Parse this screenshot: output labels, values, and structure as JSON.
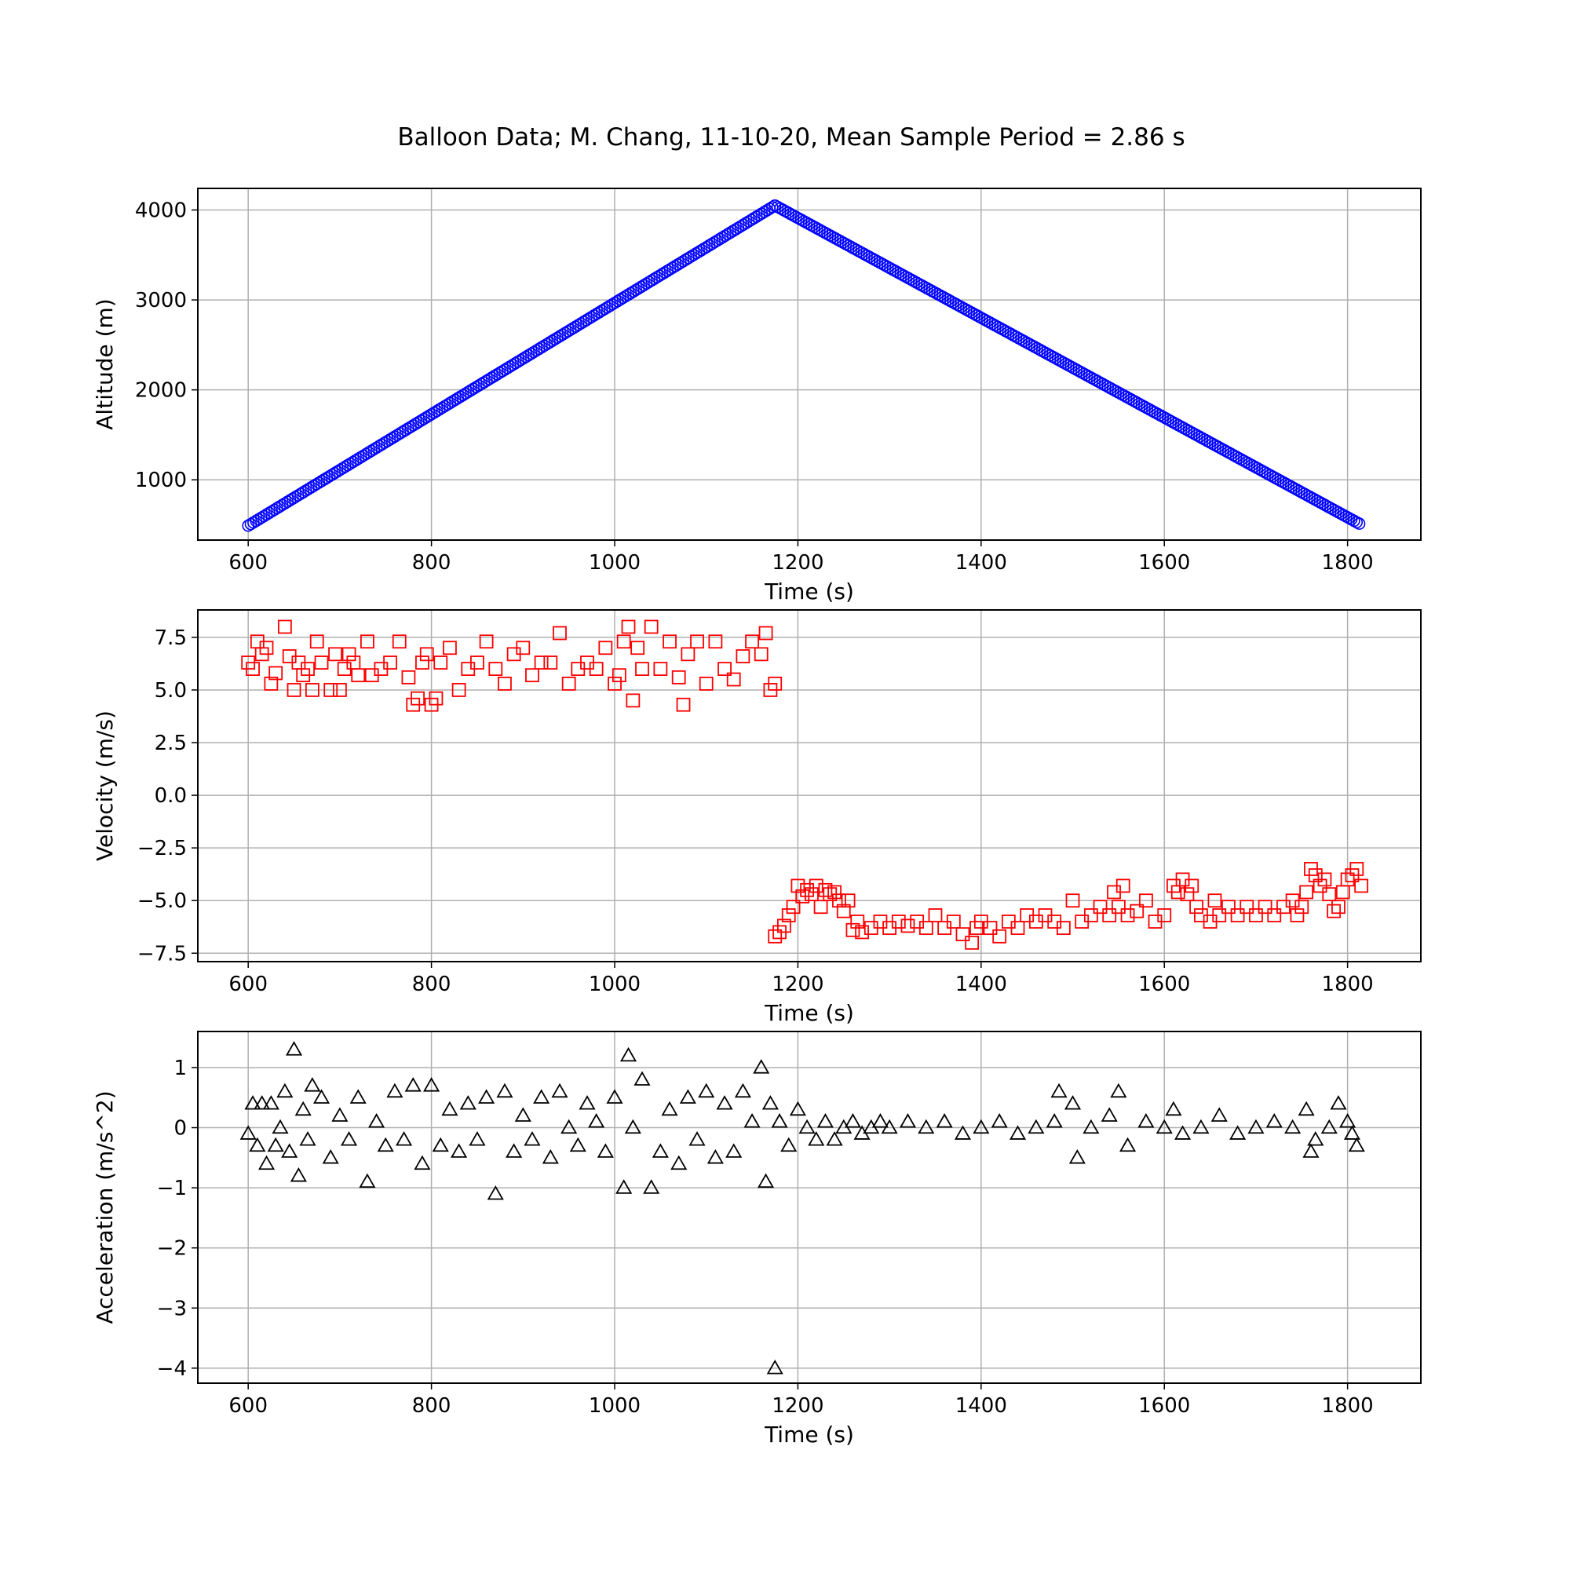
{
  "figure": {
    "title": "Balloon Data; M. Chang, 11-10-20, Mean Sample Period = 2.86 s"
  },
  "chart_data": [
    {
      "type": "scatter",
      "title": "",
      "xlabel": "Time (s)",
      "ylabel": "Altitude (m)",
      "xlim": [
        545,
        1880
      ],
      "ylim": [
        330,
        4240
      ],
      "xticks": [
        600,
        800,
        1000,
        1200,
        1400,
        1600,
        1800
      ],
      "yticks": [
        1000,
        2000,
        3000,
        4000
      ],
      "grid": true,
      "marker": "circle",
      "color": "#0000ff",
      "series": [
        {
          "sample_period": 2.86,
          "ascent": {
            "x_start": 600,
            "x_end": 1175,
            "y_start": 490,
            "y_end": 4050
          },
          "descent": {
            "x_start": 1175,
            "x_end": 1815,
            "y_start": 4050,
            "y_end": 500
          }
        }
      ]
    },
    {
      "type": "scatter",
      "title": "",
      "xlabel": "Time (s)",
      "ylabel": "Velocity (m/s)",
      "xlim": [
        545,
        1880
      ],
      "ylim": [
        -7.9,
        8.8
      ],
      "xticks": [
        600,
        800,
        1000,
        1200,
        1400,
        1600,
        1800
      ],
      "yticks": [
        -7.5,
        -5.0,
        -2.5,
        0.0,
        2.5,
        5.0,
        7.5
      ],
      "ytick_labels": [
        "−7.5",
        "−5.0",
        "−2.5",
        "0.0",
        "2.5",
        "5.0",
        "7.5"
      ],
      "grid": true,
      "marker": "square",
      "color": "#ff0000",
      "series": [
        {
          "x": [
            600,
            605,
            610,
            615,
            620,
            625,
            630,
            640,
            645,
            650,
            655,
            660,
            665,
            670,
            675,
            680,
            690,
            695,
            700,
            705,
            710,
            715,
            720,
            730,
            735,
            745,
            755,
            765,
            775,
            780,
            785,
            790,
            795,
            800,
            805,
            810,
            820,
            830,
            840,
            850,
            860,
            870,
            880,
            890,
            900,
            910,
            920,
            930,
            940,
            950,
            960,
            970,
            980,
            990,
            1000,
            1005,
            1010,
            1015,
            1020,
            1025,
            1030,
            1040,
            1050,
            1060,
            1070,
            1075,
            1080,
            1090,
            1100,
            1110,
            1120,
            1130,
            1140,
            1150,
            1160,
            1165,
            1170,
            1175
          ],
          "y": [
            6.3,
            6.0,
            7.3,
            6.7,
            7.0,
            5.3,
            5.8,
            8.0,
            6.6,
            5.0,
            6.3,
            5.7,
            6.0,
            5.0,
            7.3,
            6.3,
            5.0,
            6.7,
            5.0,
            6.0,
            6.7,
            6.3,
            5.7,
            7.3,
            5.7,
            6.0,
            6.3,
            7.3,
            5.6,
            4.3,
            4.6,
            6.3,
            6.7,
            4.3,
            4.6,
            6.3,
            7.0,
            5.0,
            6.0,
            6.3,
            7.3,
            6.0,
            5.3,
            6.7,
            7.0,
            5.7,
            6.3,
            6.3,
            7.7,
            5.3,
            6.0,
            6.3,
            6.0,
            7.0,
            5.3,
            5.7,
            7.3,
            8.0,
            4.5,
            7.0,
            6.0,
            8.0,
            6.0,
            7.3,
            5.6,
            4.3,
            6.7,
            7.3,
            5.3,
            7.3,
            6.0,
            5.5,
            6.6,
            7.3,
            6.7,
            7.7,
            5.0,
            5.3
          ]
        },
        {
          "x": [
            1175,
            1180,
            1185,
            1190,
            1195,
            1200,
            1205,
            1210,
            1215,
            1220,
            1225,
            1230,
            1235,
            1240,
            1245,
            1250,
            1255,
            1260,
            1265,
            1270,
            1280,
            1290,
            1300,
            1310,
            1320,
            1330,
            1340,
            1350,
            1360,
            1370,
            1380,
            1390,
            1395,
            1400,
            1410,
            1420,
            1430,
            1440,
            1450,
            1460,
            1470,
            1480,
            1490,
            1500,
            1510,
            1520,
            1530,
            1540,
            1545,
            1550,
            1555,
            1560,
            1570,
            1580,
            1590,
            1600,
            1610,
            1615,
            1620,
            1625,
            1630,
            1635,
            1640,
            1650,
            1655,
            1660,
            1670,
            1680,
            1690,
            1700,
            1710,
            1720,
            1730,
            1740,
            1745,
            1750,
            1755,
            1760,
            1765,
            1770,
            1775,
            1780,
            1785,
            1790,
            1795,
            1800,
            1805,
            1810,
            1815
          ],
          "y": [
            -6.7,
            -6.5,
            -6.2,
            -5.7,
            -5.3,
            -4.3,
            -4.8,
            -4.5,
            -4.7,
            -4.3,
            -5.3,
            -4.5,
            -4.7,
            -4.6,
            -5.0,
            -5.5,
            -5.0,
            -6.4,
            -6.0,
            -6.5,
            -6.3,
            -6.0,
            -6.3,
            -6.0,
            -6.2,
            -6.0,
            -6.3,
            -5.7,
            -6.3,
            -6.0,
            -6.6,
            -7.0,
            -6.3,
            -6.0,
            -6.3,
            -6.7,
            -6.0,
            -6.3,
            -5.7,
            -6.0,
            -5.7,
            -6.0,
            -6.3,
            -5.0,
            -6.0,
            -5.7,
            -5.3,
            -5.7,
            -4.6,
            -5.3,
            -4.3,
            -5.7,
            -5.5,
            -5.0,
            -6.0,
            -5.7,
            -4.3,
            -4.6,
            -4.0,
            -4.7,
            -4.3,
            -5.3,
            -5.7,
            -6.0,
            -5.0,
            -5.7,
            -5.3,
            -5.7,
            -5.3,
            -5.7,
            -5.3,
            -5.7,
            -5.3,
            -5.0,
            -5.7,
            -5.3,
            -4.6,
            -3.5,
            -3.8,
            -4.3,
            -4.0,
            -4.7,
            -5.5,
            -5.3,
            -4.6,
            -4.0,
            -3.8,
            -3.5,
            -4.3
          ]
        }
      ]
    },
    {
      "type": "scatter",
      "title": "",
      "xlabel": "Time (s)",
      "ylabel": "Acceleration (m/s^2)",
      "xlim": [
        545,
        1880
      ],
      "ylim": [
        -4.25,
        1.6
      ],
      "xticks": [
        600,
        800,
        1000,
        1200,
        1400,
        1600,
        1800
      ],
      "yticks": [
        -4,
        -3,
        -2,
        -1,
        0,
        1
      ],
      "ytick_labels": [
        "−4",
        "−3",
        "−2",
        "−1",
        "0",
        "1"
      ],
      "grid": true,
      "marker": "triangle",
      "color": "#000000",
      "series": [
        {
          "x": [
            600,
            605,
            610,
            615,
            620,
            625,
            630,
            635,
            640,
            645,
            650,
            655,
            660,
            665,
            670,
            680,
            690,
            700,
            710,
            720,
            730,
            740,
            750,
            760,
            770,
            780,
            790,
            800,
            810,
            820,
            830,
            840,
            850,
            860,
            870,
            880,
            890,
            900,
            910,
            920,
            930,
            940,
            950,
            960,
            970,
            980,
            990,
            1000,
            1010,
            1015,
            1020,
            1030,
            1040,
            1050,
            1060,
            1070,
            1080,
            1090,
            1100,
            1110,
            1120,
            1130,
            1140,
            1150,
            1160,
            1165,
            1170,
            1175,
            1180,
            1190,
            1200,
            1210,
            1220,
            1230,
            1240,
            1250,
            1260,
            1270,
            1280,
            1290,
            1300,
            1320,
            1340,
            1360,
            1380,
            1400,
            1420,
            1440,
            1460,
            1480,
            1485,
            1500,
            1505,
            1520,
            1540,
            1550,
            1560,
            1580,
            1600,
            1610,
            1620,
            1640,
            1660,
            1680,
            1700,
            1720,
            1740,
            1755,
            1760,
            1765,
            1780,
            1790,
            1800,
            1805,
            1810
          ],
          "y": [
            -0.1,
            0.4,
            -0.3,
            0.4,
            -0.6,
            0.4,
            -0.3,
            0.0,
            0.6,
            -0.4,
            1.3,
            -0.8,
            0.3,
            -0.2,
            0.7,
            0.5,
            -0.5,
            0.2,
            -0.2,
            0.5,
            -0.9,
            0.1,
            -0.3,
            0.6,
            -0.2,
            0.7,
            -0.6,
            0.7,
            -0.3,
            0.3,
            -0.4,
            0.4,
            -0.2,
            0.5,
            -1.1,
            0.6,
            -0.4,
            0.2,
            -0.2,
            0.5,
            -0.5,
            0.6,
            0.0,
            -0.3,
            0.4,
            0.1,
            -0.4,
            0.5,
            -1.0,
            1.2,
            0.0,
            0.8,
            -1.0,
            -0.4,
            0.3,
            -0.6,
            0.5,
            -0.2,
            0.6,
            -0.5,
            0.4,
            -0.4,
            0.6,
            0.1,
            1.0,
            -0.9,
            0.4,
            -4.0,
            0.1,
            -0.3,
            0.3,
            0.0,
            -0.2,
            0.1,
            -0.2,
            0.0,
            0.1,
            -0.1,
            0.0,
            0.1,
            0.0,
            0.1,
            0.0,
            0.1,
            -0.1,
            0.0,
            0.1,
            -0.1,
            0.0,
            0.1,
            0.6,
            0.4,
            -0.5,
            0.0,
            0.2,
            0.6,
            -0.3,
            0.1,
            0.0,
            0.3,
            -0.1,
            0.0,
            0.2,
            -0.1,
            0.0,
            0.1,
            0.0,
            0.3,
            -0.4,
            -0.2,
            0.0,
            0.4,
            0.1,
            -0.1,
            -0.3
          ]
        }
      ]
    }
  ]
}
